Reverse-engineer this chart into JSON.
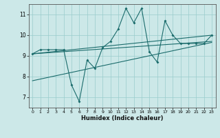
{
  "xlabel": "Humidex (Indice chaleur)",
  "background_color": "#cce8e8",
  "grid_color": "#99cccc",
  "line_color": "#1a6b6b",
  "xlim": [
    -0.5,
    23.5
  ],
  "ylim": [
    6.5,
    11.5
  ],
  "yticks": [
    7,
    8,
    9,
    10,
    11
  ],
  "xticks": [
    0,
    1,
    2,
    3,
    4,
    5,
    6,
    7,
    8,
    9,
    10,
    11,
    12,
    13,
    14,
    15,
    16,
    17,
    18,
    19,
    20,
    21,
    22,
    23
  ],
  "data_x": [
    0,
    1,
    2,
    3,
    4,
    5,
    6,
    7,
    8,
    9,
    10,
    11,
    12,
    13,
    14,
    15,
    16,
    17,
    18,
    19,
    20,
    21,
    22,
    23
  ],
  "data_y": [
    9.1,
    9.3,
    9.3,
    9.3,
    9.3,
    7.6,
    6.8,
    8.8,
    8.4,
    9.4,
    9.7,
    10.3,
    11.3,
    10.6,
    11.3,
    9.2,
    8.7,
    10.7,
    10.0,
    9.6,
    9.6,
    9.6,
    9.6,
    10.0
  ],
  "trend1_x": [
    0,
    23
  ],
  "trend1_y": [
    9.1,
    9.7
  ],
  "trend2_x": [
    0,
    23
  ],
  "trend2_y": [
    9.1,
    10.0
  ],
  "trend3_x": [
    0,
    23
  ],
  "trend3_y": [
    7.8,
    9.65
  ]
}
